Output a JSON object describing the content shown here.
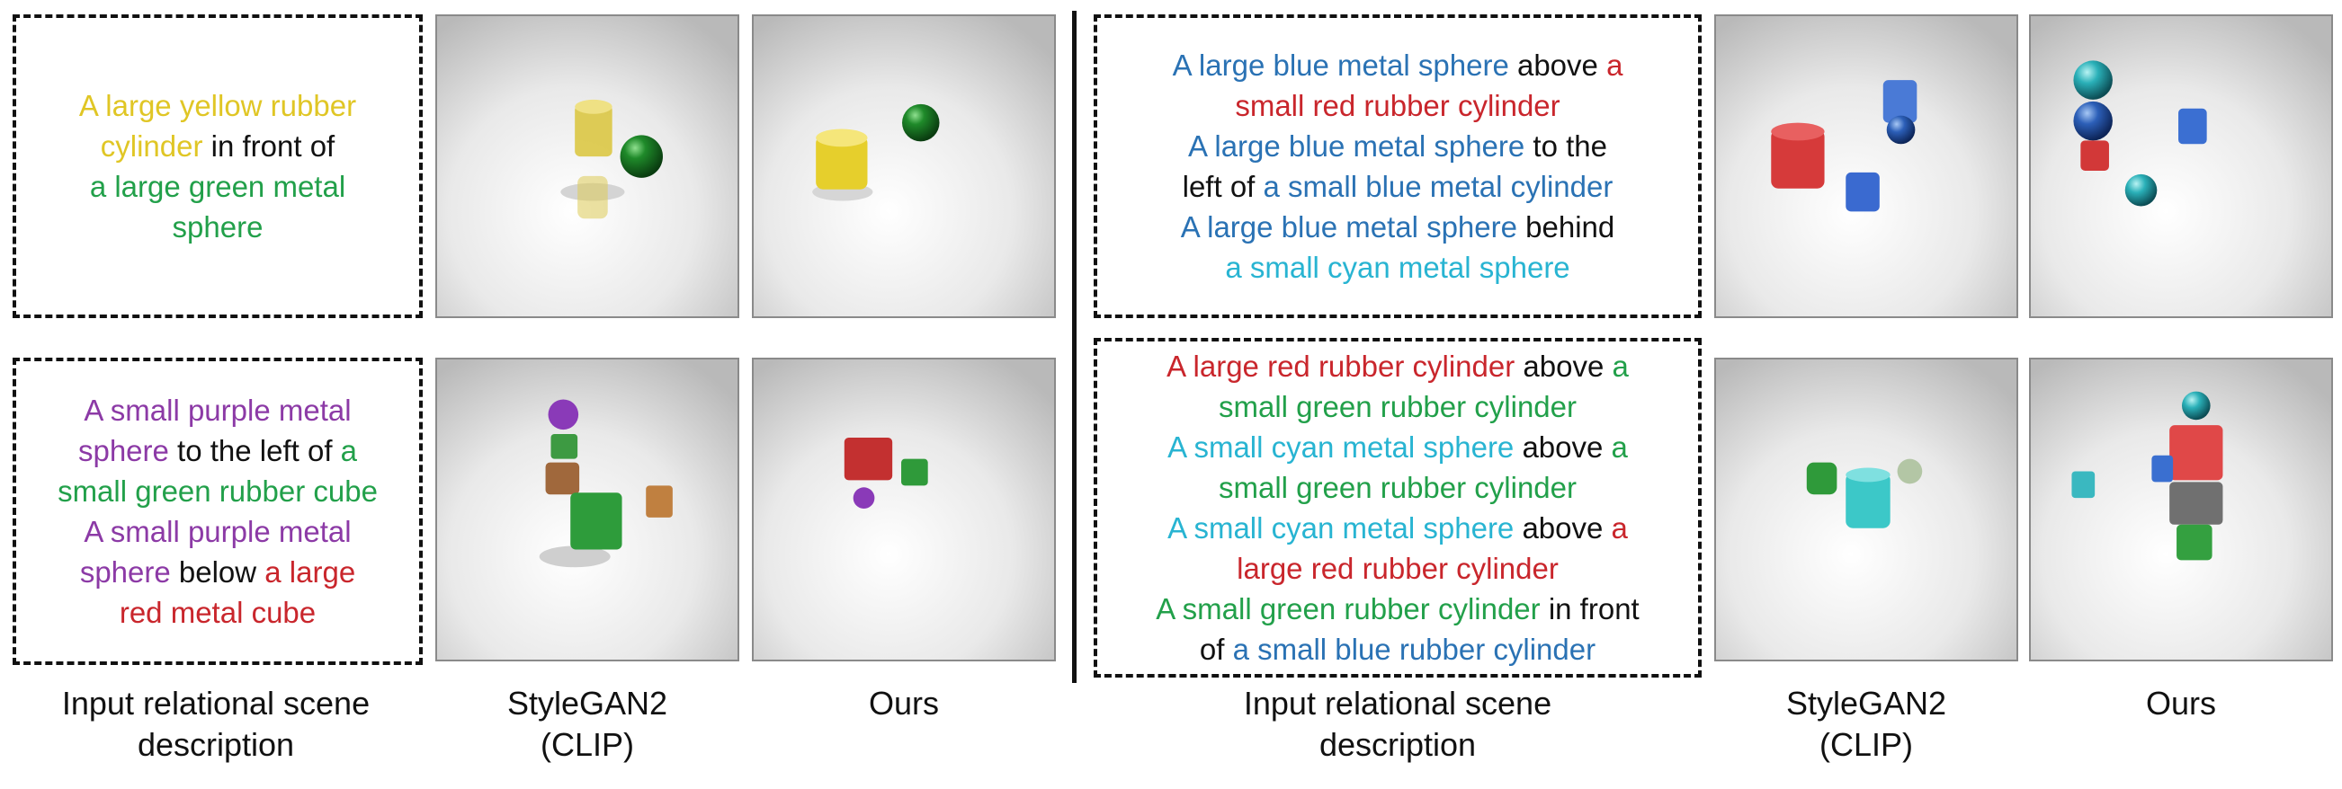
{
  "colors": {
    "yellow": "#e0c625",
    "green": "#22a04a",
    "purple": "#8c3aa6",
    "red": "#c9262c",
    "blue": "#2a72b4",
    "cyan": "#28b4d2",
    "black": "#111111"
  },
  "left_panel": {
    "rows": [
      {
        "description": [
          {
            "text": "A large yellow rubber",
            "color": "yellow"
          },
          {
            "text": "cylinder",
            "color": "yellow"
          },
          {
            "text": " in front of",
            "color": "black"
          },
          {
            "text": "a large green metal",
            "color": "green"
          },
          {
            "text": "sphere",
            "color": "green"
          }
        ]
      },
      {
        "description": [
          {
            "text": "A small purple metal",
            "color": "purple"
          },
          {
            "text": "sphere",
            "color": "purple"
          },
          {
            "text": " to the left of ",
            "color": "black"
          },
          {
            "text": "a",
            "color": "green"
          },
          {
            "text": "small green rubber cube",
            "color": "green"
          },
          {
            "text": "A small purple metal",
            "color": "purple"
          },
          {
            "text": "sphere",
            "color": "purple"
          },
          {
            "text": " below ",
            "color": "black"
          },
          {
            "text": "a large",
            "color": "red"
          },
          {
            "text": "red metal cube",
            "color": "red"
          }
        ]
      }
    ],
    "captions": {
      "input": "Input relational scene\ndescription",
      "stylegan": "StyleGAN2\n(CLIP)",
      "ours": "Ours"
    }
  },
  "right_panel": {
    "rows": [
      {
        "description": [
          {
            "text": "A large blue metal sphere",
            "color": "blue"
          },
          {
            "text": " above ",
            "color": "black"
          },
          {
            "text": "a",
            "color": "red"
          },
          {
            "text": "small red rubber cylinder",
            "color": "red"
          },
          {
            "text": "A large blue metal sphere",
            "color": "blue"
          },
          {
            "text": " to the",
            "color": "black"
          },
          {
            "text": "left of ",
            "color": "black"
          },
          {
            "text": "a small blue metal cylinder",
            "color": "blue"
          },
          {
            "text": "A large blue metal sphere",
            "color": "blue"
          },
          {
            "text": " behind",
            "color": "black"
          },
          {
            "text": "a small cyan metal sphere",
            "color": "cyan"
          }
        ]
      },
      {
        "description": [
          {
            "text": "A large red rubber cylinder",
            "color": "red"
          },
          {
            "text": " above ",
            "color": "black"
          },
          {
            "text": "a",
            "color": "green"
          },
          {
            "text": "small green rubber cylinder",
            "color": "green"
          },
          {
            "text": "A small cyan metal sphere",
            "color": "cyan"
          },
          {
            "text": " above ",
            "color": "black"
          },
          {
            "text": "a",
            "color": "green"
          },
          {
            "text": "small green rubber cylinder",
            "color": "green"
          },
          {
            "text": "A small cyan metal sphere",
            "color": "cyan"
          },
          {
            "text": " above ",
            "color": "black"
          },
          {
            "text": "a",
            "color": "red"
          },
          {
            "text": "large red rubber cylinder",
            "color": "red"
          },
          {
            "text": "A small green rubber cylinder",
            "color": "green"
          },
          {
            "text": " in front",
            "color": "black"
          },
          {
            "text": "of ",
            "color": "black"
          },
          {
            "text": "a small blue rubber cylinder",
            "color": "blue"
          }
        ]
      }
    ],
    "captions": {
      "input": "Input relational scene\ndescription",
      "stylegan": "StyleGAN2\n(CLIP)",
      "ours": "Ours"
    }
  }
}
